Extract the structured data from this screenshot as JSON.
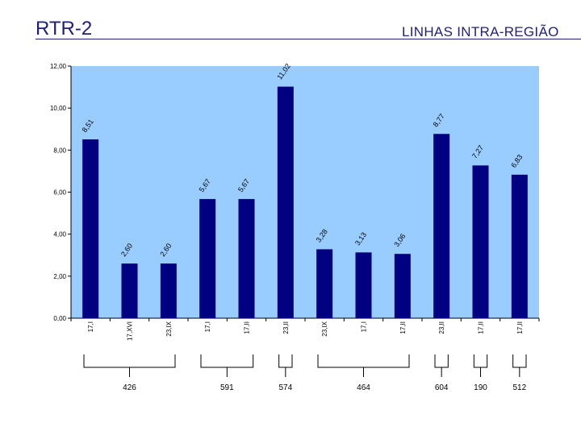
{
  "header": {
    "title": "RTR-2",
    "subtitle": "LINHAS INTRA-REGIÃO"
  },
  "colors": {
    "plot_bg": "#99ccff",
    "bar": "#000080",
    "title": "#1f1f7a"
  },
  "chart_data": {
    "type": "bar",
    "categories": [
      "17,I",
      "17,XVI",
      "23,IX",
      "17,I",
      "17,II",
      "23,II",
      "23,IX",
      "17,I",
      "17,II",
      "23,II",
      "17,II",
      "17,II"
    ],
    "values": [
      8.51,
      2.6,
      2.6,
      5.67,
      5.67,
      11.02,
      3.28,
      3.13,
      3.06,
      8.77,
      7.27,
      6.83
    ],
    "value_labels": [
      "8,51",
      "2,60",
      "2,60",
      "5,67",
      "5,67",
      "11,02",
      "3,28",
      "3,13",
      "3,06",
      "8,77",
      "7,27",
      "6,83"
    ],
    "yticks": [
      "0,00",
      "2,00",
      "4,00",
      "6,00",
      "8,00",
      "10,00",
      "12,00"
    ],
    "ylim": [
      0,
      12
    ],
    "grid": false,
    "legend": "none",
    "groups": [
      {
        "label": "426",
        "start": 0,
        "end": 2
      },
      {
        "label": "591",
        "start": 3,
        "end": 4
      },
      {
        "label": "574",
        "start": 5,
        "end": 5
      },
      {
        "label": "464",
        "start": 6,
        "end": 8
      },
      {
        "label": "604",
        "start": 9,
        "end": 9
      },
      {
        "label": "190",
        "start": 10,
        "end": 10
      },
      {
        "label": "512",
        "start": 11,
        "end": 11
      }
    ]
  }
}
